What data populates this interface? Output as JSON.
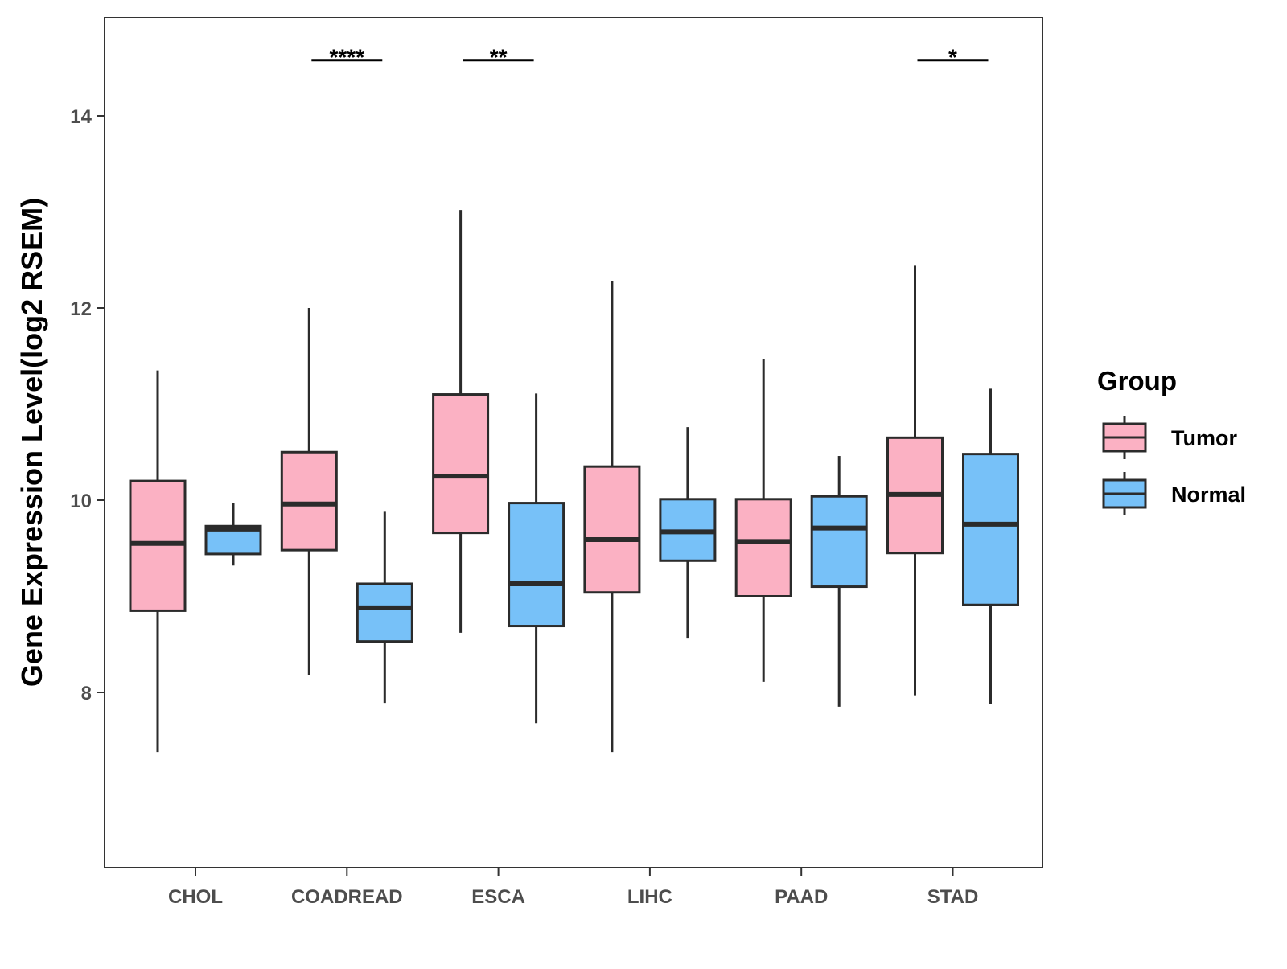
{
  "chart_data": {
    "type": "boxplot",
    "title": "",
    "xlabel": "",
    "ylabel": "Gene Expression Level(log2 RSEM)",
    "ylim": [
      6.2,
      15.0
    ],
    "yticks": [
      8,
      10,
      12,
      14
    ],
    "ytick_labels": [
      "8",
      "10",
      "12",
      "14"
    ],
    "categories": [
      "CHOL",
      "COADREAD",
      "ESCA",
      "LIHC",
      "PAAD",
      "STAD"
    ],
    "legend": {
      "title": "Group",
      "position": "right",
      "entries": [
        {
          "name": "Tumor",
          "color": "#fbb1c3"
        },
        {
          "name": "Normal",
          "color": "#77c1f8"
        }
      ]
    },
    "series": [
      {
        "name": "Tumor",
        "color": "#fbb1c3",
        "boxes": [
          {
            "category": "CHOL",
            "min": 7.38,
            "q1": 8.85,
            "median": 9.55,
            "q3": 10.2,
            "max": 11.35
          },
          {
            "category": "COADREAD",
            "min": 8.18,
            "q1": 9.48,
            "median": 9.96,
            "q3": 10.5,
            "max": 12.0
          },
          {
            "category": "ESCA",
            "min": 8.62,
            "q1": 9.66,
            "median": 10.25,
            "q3": 11.1,
            "max": 13.02
          },
          {
            "category": "LIHC",
            "min": 7.38,
            "q1": 9.04,
            "median": 9.59,
            "q3": 10.35,
            "max": 12.28
          },
          {
            "category": "PAAD",
            "min": 8.11,
            "q1": 9.0,
            "median": 9.57,
            "q3": 10.01,
            "max": 11.47
          },
          {
            "category": "STAD",
            "min": 7.97,
            "q1": 9.45,
            "median": 10.06,
            "q3": 10.65,
            "max": 12.44
          }
        ]
      },
      {
        "name": "Normal",
        "color": "#77c1f8",
        "boxes": [
          {
            "category": "CHOL",
            "min": 9.32,
            "q1": 9.44,
            "median": 9.7,
            "q3": 9.73,
            "max": 9.97
          },
          {
            "category": "COADREAD",
            "min": 7.89,
            "q1": 8.53,
            "median": 8.88,
            "q3": 9.13,
            "max": 9.88
          },
          {
            "category": "ESCA",
            "min": 7.68,
            "q1": 8.69,
            "median": 9.13,
            "q3": 9.97,
            "max": 11.11
          },
          {
            "category": "LIHC",
            "min": 8.56,
            "q1": 9.37,
            "median": 9.67,
            "q3": 10.01,
            "max": 10.76
          },
          {
            "category": "PAAD",
            "min": 7.85,
            "q1": 9.1,
            "median": 9.71,
            "q3": 10.04,
            "max": 10.46
          },
          {
            "category": "STAD",
            "min": 7.88,
            "q1": 8.91,
            "median": 9.75,
            "q3": 10.48,
            "max": 11.16
          }
        ]
      }
    ],
    "annotations": [
      {
        "category": "COADREAD",
        "label": "****",
        "y": 14.58
      },
      {
        "category": "ESCA",
        "label": "**",
        "y": 14.58
      },
      {
        "category": "STAD",
        "label": "*",
        "y": 14.58
      }
    ]
  }
}
